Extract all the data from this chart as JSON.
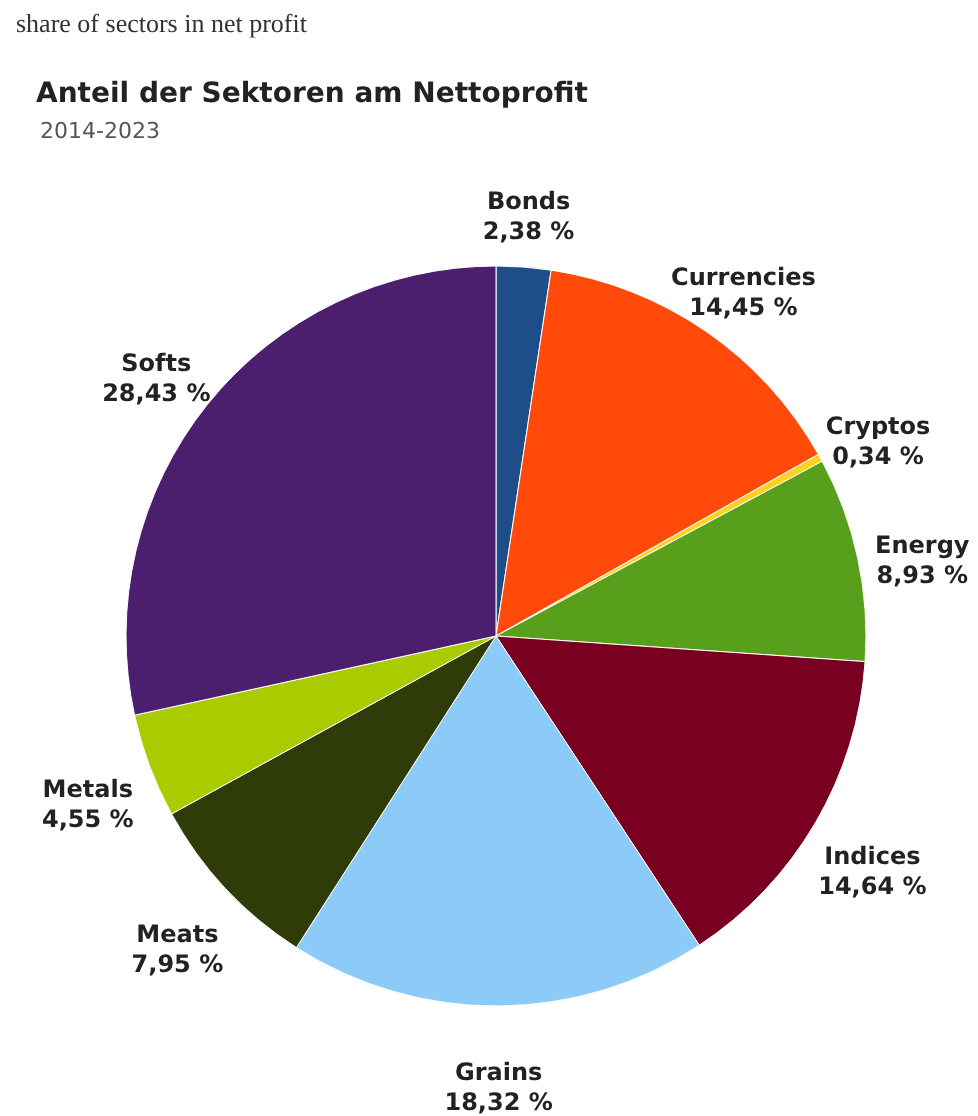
{
  "chart_data": {
    "type": "pie",
    "title": "Anteil der Sektoren am Nettoprofit",
    "subtitle": "2014-2023",
    "annotations": [
      "share of sectors in net profit"
    ],
    "categories": [
      "Bonds",
      "Currencies",
      "Cryptos",
      "Energy",
      "Indices",
      "Grains",
      "Meats",
      "Metals",
      "Softs"
    ],
    "values": [
      2.38,
      14.45,
      0.34,
      8.93,
      14.64,
      18.32,
      7.95,
      4.55,
      28.43
    ],
    "value_labels": [
      "2,38 %",
      "14,45 %",
      "0,34 %",
      "8,93 %",
      "14,64 %",
      "18,32 %",
      "7,95 %",
      "4,55 %",
      "28,43 %"
    ],
    "colors": [
      "#1d4e89",
      "#ff4a0a",
      "#ffd21f",
      "#58a01c",
      "#7a0022",
      "#8ccaf7",
      "#2f3b08",
      "#a9cc00",
      "#4c1f6e"
    ]
  }
}
